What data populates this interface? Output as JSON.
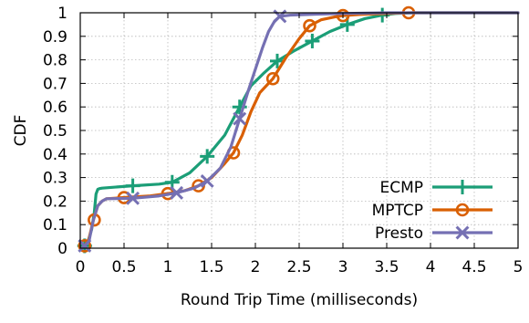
{
  "chart_data": {
    "type": "line",
    "title": "",
    "xlabel": "Round Trip Time (milliseconds)",
    "ylabel": "CDF",
    "xlim": [
      0,
      5
    ],
    "ylim": [
      0,
      1
    ],
    "xticks": [
      "0",
      "0.5",
      "1",
      "1.5",
      "2",
      "2.5",
      "3",
      "3.5",
      "4",
      "4.5",
      "5"
    ],
    "yticks": [
      "0",
      "0.1",
      "0.2",
      "0.3",
      "0.4",
      "0.5",
      "0.6",
      "0.7",
      "0.8",
      "0.9",
      "1"
    ],
    "grid": true,
    "legend_position": "bottom-right",
    "series": [
      {
        "name": "ECMP",
        "color": "#1b9e77",
        "marker": "plus",
        "x": [
          0.02,
          0.05,
          0.09,
          0.13,
          0.16,
          0.18,
          0.2,
          0.22,
          0.25,
          0.35,
          0.6,
          0.9,
          1.05,
          1.25,
          1.45,
          1.65,
          1.82,
          1.95,
          2.1,
          2.25,
          2.45,
          2.65,
          2.85,
          3.05,
          3.25,
          3.45,
          3.6,
          3.8,
          4.0,
          4.5,
          5.0
        ],
        "y": [
          0.0,
          0.01,
          0.03,
          0.08,
          0.15,
          0.23,
          0.25,
          0.253,
          0.255,
          0.258,
          0.265,
          0.272,
          0.28,
          0.32,
          0.39,
          0.48,
          0.6,
          0.69,
          0.745,
          0.795,
          0.84,
          0.88,
          0.92,
          0.95,
          0.975,
          0.99,
          0.997,
          1.0,
          1.0,
          1.0,
          1.0
        ],
        "markers_x": [
          0.05,
          0.6,
          1.05,
          1.45,
          1.82,
          2.25,
          2.65,
          3.05,
          3.45
        ],
        "markers_y": [
          0.01,
          0.265,
          0.28,
          0.39,
          0.6,
          0.795,
          0.88,
          0.95,
          0.99
        ]
      },
      {
        "name": "MPTCP",
        "color": "#d95f02",
        "marker": "circle",
        "x": [
          0.02,
          0.05,
          0.1,
          0.15,
          0.2,
          0.25,
          0.3,
          0.5,
          0.8,
          1.0,
          1.2,
          1.35,
          1.5,
          1.65,
          1.75,
          1.85,
          1.95,
          2.05,
          2.2,
          2.35,
          2.5,
          2.62,
          2.75,
          2.9,
          3.0,
          3.2,
          3.5,
          3.75,
          4.0,
          4.5,
          5.0
        ],
        "y": [
          0.0,
          0.01,
          0.04,
          0.12,
          0.18,
          0.2,
          0.21,
          0.215,
          0.222,
          0.232,
          0.245,
          0.265,
          0.3,
          0.36,
          0.405,
          0.48,
          0.58,
          0.66,
          0.72,
          0.81,
          0.89,
          0.945,
          0.97,
          0.982,
          0.988,
          0.993,
          0.997,
          1.0,
          1.0,
          1.0,
          1.0
        ],
        "markers_x": [
          0.05,
          0.16,
          0.5,
          1.0,
          1.35,
          1.75,
          2.2,
          2.62,
          3.0,
          3.75
        ],
        "markers_y": [
          0.01,
          0.12,
          0.215,
          0.232,
          0.265,
          0.405,
          0.72,
          0.945,
          0.988,
          1.0
        ]
      },
      {
        "name": "Presto",
        "color": "#7570b3",
        "marker": "cross",
        "x": [
          0.02,
          0.05,
          0.1,
          0.15,
          0.2,
          0.25,
          0.3,
          0.6,
          0.9,
          1.1,
          1.3,
          1.45,
          1.6,
          1.72,
          1.82,
          1.92,
          2.0,
          2.08,
          2.15,
          2.22,
          2.28,
          2.4,
          2.7,
          3.0,
          3.5,
          4.0,
          4.5,
          5.0
        ],
        "y": [
          0.0,
          0.01,
          0.03,
          0.12,
          0.18,
          0.2,
          0.21,
          0.212,
          0.222,
          0.235,
          0.255,
          0.285,
          0.34,
          0.43,
          0.55,
          0.67,
          0.76,
          0.85,
          0.92,
          0.965,
          0.985,
          0.99,
          0.994,
          0.997,
          1.0,
          1.0,
          1.0,
          1.0
        ],
        "markers_x": [
          0.05,
          0.6,
          1.1,
          1.45,
          1.82,
          2.28
        ],
        "markers_y": [
          0.01,
          0.212,
          0.235,
          0.285,
          0.55,
          0.985
        ]
      }
    ]
  }
}
